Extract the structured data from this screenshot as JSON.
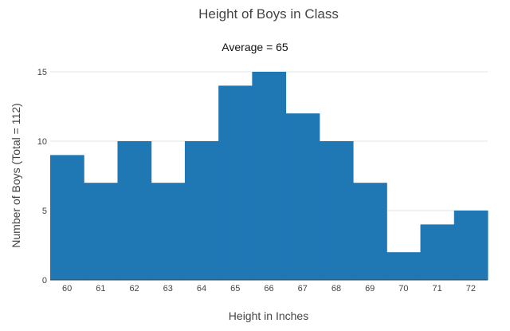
{
  "chart_data": {
    "type": "bar",
    "title": "Height of Boys in Class",
    "annotation": "Average = 65",
    "xlabel": "Height in Inches",
    "ylabel": "Number of Boys (Total = 112)",
    "categories": [
      "60",
      "61",
      "62",
      "63",
      "64",
      "65",
      "66",
      "67",
      "68",
      "69",
      "70",
      "71",
      "72"
    ],
    "values": [
      9,
      7,
      10,
      7,
      10,
      14,
      15,
      12,
      10,
      7,
      2,
      4,
      5
    ],
    "ylim": [
      0,
      15
    ],
    "y_ticks": [
      "0",
      "5",
      "10",
      "15"
    ],
    "grid": true,
    "bar_gap": 0,
    "colors": {
      "bar": "#1f77b4"
    }
  }
}
